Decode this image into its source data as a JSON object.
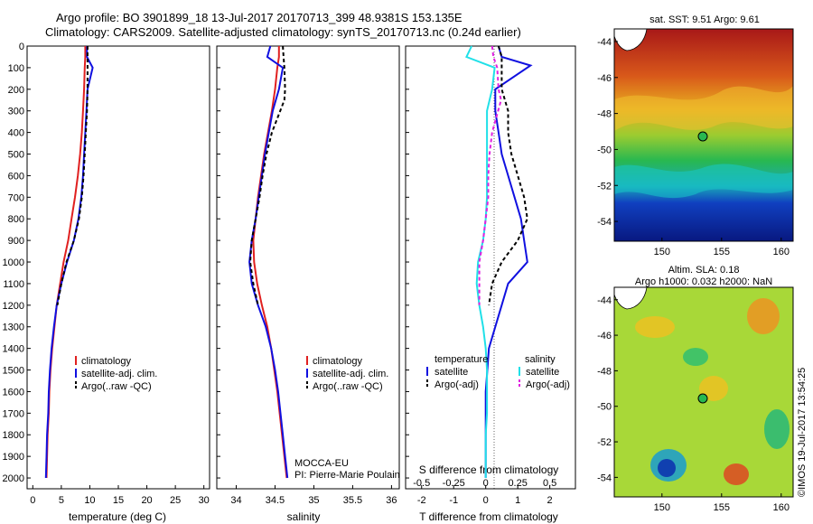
{
  "title": {
    "line1": "Argo profile: BO 3901899_18 13-Jul-2017 20170713_399 48.9381S 153.135E",
    "line2": "Climatology: CARS2009. Satellite-adjusted climatology: synTS_20170713.nc (0.24d earlier)"
  },
  "watermark": "©IMOS 19-Jul-2017 13:54:25",
  "colors": {
    "climatology": "#e02020",
    "satellite": "#1010e0",
    "argo": "#000000",
    "sal_satellite": "#20e0e8",
    "sal_argo": "#e020e0"
  },
  "depth_axis": {
    "ylim": [
      0,
      2050
    ],
    "ticks": [
      "0",
      "100",
      "200",
      "300",
      "400",
      "500",
      "600",
      "700",
      "800",
      "900",
      "1000",
      "1100",
      "1200",
      "1300",
      "1400",
      "1500",
      "1600",
      "1700",
      "1800",
      "1900",
      "2000"
    ]
  },
  "panels": {
    "temperature": {
      "xlabel": "temperature (deg C)",
      "xticks": [
        "0",
        "5",
        "10",
        "15",
        "20",
        "25",
        "30"
      ],
      "legend": [
        "climatology",
        "satellite-adj. clim.",
        "Argo(..raw -QC)"
      ]
    },
    "salinity": {
      "xlabel": "salinity",
      "xticks": [
        "34",
        "34.5",
        "35",
        "35.5",
        "36"
      ],
      "legend": [
        "climatology",
        "satellite-adj. clim.",
        "Argo(..raw -QC)"
      ],
      "annotation1": "MOCCA-EU",
      "annotation2": "PI: Pierre-Marie Poulain"
    },
    "difference": {
      "xlabel": "T difference from climatology",
      "s_label": "S difference from climatology",
      "xticks": [
        "-2",
        "-1",
        "0",
        "1",
        "2"
      ],
      "s_ticks": [
        "-0.5",
        "-0.25",
        "0",
        "0.25",
        "0.5"
      ],
      "legend_temp_title": "temperature",
      "legend_sal_title": "salinity",
      "legend_temp": [
        "satellite",
        "Argo(-adj)"
      ],
      "legend_sal": [
        "satellite",
        "Argo(-adj)"
      ]
    }
  },
  "maps": {
    "sst_title": "sat. SST: 9.51  Argo: 9.61",
    "sla_title1": "Altim. SLA: 0.18",
    "sla_title2": "Argo h1000: 0.032  h2000: NaN",
    "xticks": [
      "150",
      "155",
      "160"
    ],
    "yticks": [
      "-44",
      "-46",
      "-48",
      "-50",
      "-52",
      "-54"
    ],
    "float_position": {
      "lon": 153.135,
      "lat": -48.9381
    }
  },
  "chart_data": [
    {
      "type": "line",
      "title": "",
      "xlabel": "temperature (deg C)",
      "ylabel": "",
      "xlim": [
        -1,
        31
      ],
      "ylim": [
        2050,
        0
      ],
      "series": [
        {
          "name": "climatology",
          "x": [
            9.2,
            9.2,
            9.1,
            9.0,
            8.8,
            8.6,
            8.3,
            7.9,
            7.4,
            6.8,
            6.2,
            5.4,
            4.8,
            4.2,
            3.8,
            3.4,
            3.1,
            2.9,
            2.8,
            2.6,
            2.5,
            2.4
          ],
          "y": [
            0,
            50,
            100,
            200,
            300,
            400,
            500,
            600,
            700,
            800,
            900,
            1000,
            1100,
            1200,
            1300,
            1400,
            1500,
            1600,
            1700,
            1800,
            1900,
            2000
          ]
        },
        {
          "name": "satellite-adj. clim.",
          "x": [
            9.5,
            9.5,
            10.5,
            9.6,
            9.4,
            9.2,
            9.0,
            8.8,
            8.5,
            8.0,
            7.2,
            6.0,
            5.0,
            4.2,
            3.7,
            3.3,
            3.0,
            2.8,
            2.7,
            2.5,
            2.4,
            2.3
          ],
          "y": [
            0,
            50,
            100,
            200,
            300,
            400,
            500,
            600,
            700,
            800,
            900,
            1000,
            1100,
            1200,
            1300,
            1400,
            1500,
            1600,
            1700,
            1800,
            1900,
            2000
          ]
        },
        {
          "name": "Argo(..raw -QC)",
          "x": [
            9.6,
            9.6,
            9.6,
            9.6,
            9.5,
            9.3,
            9.1,
            8.9,
            8.6,
            8.1,
            7.2,
            5.9,
            5.0,
            4.3
          ],
          "y": [
            0,
            50,
            100,
            200,
            300,
            400,
            500,
            600,
            700,
            800,
            900,
            1000,
            1100,
            1200
          ]
        }
      ]
    },
    {
      "type": "line",
      "title": "",
      "xlabel": "salinity",
      "ylabel": "",
      "xlim": [
        33.75,
        36.1
      ],
      "ylim": [
        2050,
        0
      ],
      "series": [
        {
          "name": "climatology",
          "x": [
            34.55,
            34.55,
            34.53,
            34.5,
            34.46,
            34.41,
            34.36,
            34.32,
            34.28,
            34.25,
            34.22,
            34.23,
            34.27,
            34.33,
            34.4,
            34.45,
            34.49,
            34.53,
            34.56,
            34.59,
            34.62,
            34.65
          ],
          "y": [
            0,
            50,
            100,
            200,
            300,
            400,
            500,
            600,
            700,
            800,
            900,
            1000,
            1100,
            1200,
            1300,
            1400,
            1500,
            1600,
            1700,
            1800,
            1900,
            2000
          ]
        },
        {
          "name": "satellite-adj. clim.",
          "x": [
            34.44,
            34.4,
            34.6,
            34.55,
            34.47,
            34.42,
            34.37,
            34.33,
            34.29,
            34.25,
            34.2,
            34.17,
            34.2,
            34.28,
            34.38,
            34.45,
            34.5,
            34.54,
            34.57,
            34.6,
            34.63,
            34.66
          ],
          "y": [
            0,
            50,
            100,
            200,
            300,
            400,
            500,
            600,
            700,
            800,
            900,
            1000,
            1100,
            1200,
            1300,
            1400,
            1500,
            1600,
            1700,
            1800,
            1900,
            2000
          ]
        },
        {
          "name": "Argo(..raw -QC)",
          "x": [
            34.6,
            34.61,
            34.62,
            34.63,
            34.62,
            34.46,
            34.39,
            34.34,
            34.3,
            34.25,
            34.2,
            34.18,
            34.22,
            34.28
          ],
          "y": [
            0,
            50,
            100,
            200,
            250,
            400,
            500,
            600,
            700,
            800,
            900,
            1000,
            1100,
            1200
          ]
        }
      ]
    },
    {
      "type": "line",
      "title": "",
      "xlabel": "T difference from climatology",
      "ylabel": "",
      "xlim": [
        -2.5,
        2.8
      ],
      "ylim": [
        2050,
        0
      ],
      "series": [
        {
          "name": "temperature satellite",
          "x": [
            0.4,
            0.5,
            1.4,
            0.3,
            0.3,
            0.4,
            0.5,
            0.7,
            0.9,
            1.1,
            1.2,
            1.3,
            0.7,
            0.5,
            0.3,
            0.1,
            0.05,
            0,
            0,
            0,
            0,
            0
          ],
          "y": [
            0,
            50,
            90,
            200,
            300,
            400,
            500,
            600,
            700,
            800,
            900,
            1000,
            1100,
            1200,
            1300,
            1400,
            1500,
            1600,
            1700,
            1800,
            1900,
            2000
          ]
        },
        {
          "name": "temperature Argo(-adj)",
          "x": [
            0.4,
            0.5,
            0.5,
            0.5,
            0.7,
            0.7,
            0.8,
            1.0,
            1.2,
            1.3,
            1.0,
            0.5,
            0.2,
            0.1
          ],
          "y": [
            0,
            50,
            100,
            200,
            300,
            400,
            500,
            600,
            700,
            800,
            900,
            1000,
            1100,
            1200
          ]
        },
        {
          "name": "salinity satellite",
          "x": [
            -0.11,
            -0.15,
            0.07,
            0.05,
            0.01,
            0.01,
            0.01,
            0.01,
            0.01,
            0,
            -0.02,
            -0.06,
            -0.07,
            -0.05,
            -0.02,
            0,
            0.01,
            0.01,
            0.01,
            0,
            0,
            0
          ],
          "y": [
            0,
            50,
            100,
            200,
            300,
            400,
            500,
            600,
            700,
            800,
            900,
            1000,
            1100,
            1200,
            1300,
            1400,
            1500,
            1600,
            1700,
            1800,
            1900,
            2000
          ]
        },
        {
          "name": "salinity Argo(-adj)",
          "x": [
            0.05,
            0.06,
            0.09,
            0.1,
            0.12,
            0.05,
            0.03,
            0.02,
            0.02,
            0,
            -0.02,
            -0.05,
            -0.05,
            -0.05
          ],
          "y": [
            0,
            50,
            100,
            200,
            250,
            400,
            500,
            600,
            700,
            800,
            900,
            1000,
            1100,
            1200
          ]
        }
      ]
    }
  ]
}
